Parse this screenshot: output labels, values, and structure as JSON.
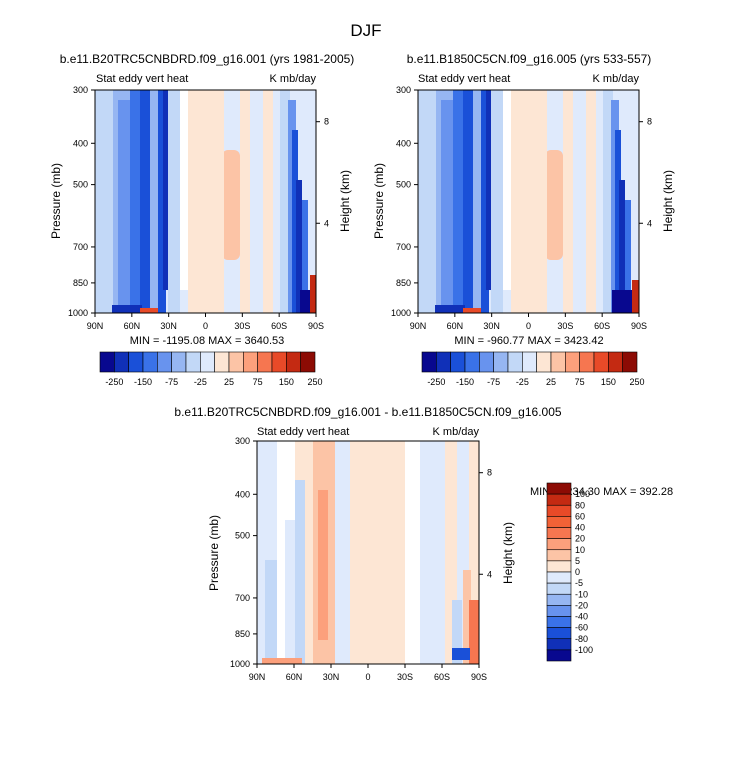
{
  "page": {
    "title": "DJF"
  },
  "panels": [
    {
      "id": "p1",
      "title": "b.e11.B20TRC5CNBDRD.f09_g16.001 (yrs 1981-2005)",
      "left_label": "Stat eddy vert heat",
      "right_label": "K mb/day",
      "ylabel": "Pressure (mb)",
      "ylabel_right": "Height (km)",
      "minmax": "MIN = -1195.08  MAX = 3640.53",
      "colorbar": "cb_main"
    },
    {
      "id": "p2",
      "title": "b.e11.B1850C5CN.f09_g16.005 (yrs 533-557)",
      "left_label": "Stat eddy vert heat",
      "right_label": "K mb/day",
      "ylabel": "Pressure (mb)",
      "ylabel_right": "Height (km)",
      "minmax": "MIN = -960.77  MAX = 3423.42",
      "colorbar": "cb_main"
    },
    {
      "id": "p3",
      "title": "b.e11.B20TRC5CNBDRD.f09_g16.001 - b.e11.B1850C5CN.f09_g16.005",
      "left_label": "Stat eddy vert heat",
      "right_label": "K mb/day",
      "ylabel": "Pressure (mb)",
      "ylabel_right": "Height (km)",
      "minmax": "MIN = -234.30  MAX = 392.28",
      "colorbar": "cb_diff"
    }
  ],
  "axes": {
    "x_ticks": [
      "90N",
      "60N",
      "30N",
      "0",
      "30S",
      "60S",
      "90S"
    ],
    "x_values": [
      90,
      60,
      30,
      0,
      -30,
      -60,
      -90
    ],
    "p_ticks": [
      300,
      400,
      500,
      700,
      850,
      1000
    ],
    "p_range": [
      300,
      1000
    ],
    "height_ticks": [
      8,
      4
    ],
    "y_scale": "log-pressure"
  },
  "colorbars": {
    "cb_main": {
      "labels": [
        "-250",
        "-150",
        "-75",
        "-25",
        "25",
        "75",
        "150",
        "250"
      ],
      "colors": [
        "#08088f",
        "#1030b8",
        "#1a50d8",
        "#3a72e8",
        "#6893ee",
        "#96b6f2",
        "#c2d8f7",
        "#dfeafc",
        "#fde6d4",
        "#fcc4a6",
        "#fca07c",
        "#f67650",
        "#e84a28",
        "#c42a12",
        "#8c0b04"
      ]
    },
    "cb_diff": {
      "labels": [
        "100",
        "80",
        "60",
        "40",
        "20",
        "10",
        "5",
        "0",
        "-5",
        "-10",
        "-20",
        "-40",
        "-60",
        "-80",
        "-100"
      ],
      "colors": [
        "#8c0b04",
        "#c42a12",
        "#e84a28",
        "#f26236",
        "#f67650",
        "#fca07c",
        "#fcc4a6",
        "#fde6d4",
        "#dfeafc",
        "#c2d8f7",
        "#96b6f2",
        "#6893ee",
        "#3a72e8",
        "#1a50d8",
        "#1030b8",
        "#08088f"
      ]
    }
  },
  "chart_data": [
    {
      "type": "heatmap",
      "title": "b.e11.B20TRC5CNBDRD.f09_g16.001 (yrs 1981-2005)",
      "subtitle": "Stat eddy vert heat",
      "units": "K mb/day",
      "xlabel": "",
      "ylabel": "Pressure (mb)",
      "ylabel_right": "Height (km)",
      "x_range": [
        90,
        -90
      ],
      "ylim": [
        1000,
        300
      ],
      "columns": [
        {
          "lat_range": [
            90,
            75
          ],
          "value": -25
        },
        {
          "lat_range": [
            75,
            45
          ],
          "value": -75
        },
        {
          "lat_range": [
            45,
            33
          ],
          "value": -150
        },
        {
          "lat_range": [
            33,
            28
          ],
          "value": -250
        },
        {
          "lat_range": [
            28,
            18
          ],
          "value": -25
        },
        {
          "lat_range": [
            18,
            10
          ],
          "value": 0
        },
        {
          "lat_range": [
            10,
            -5
          ],
          "value": 25
        },
        {
          "lat_range": [
            -5,
            -45
          ],
          "value": -25
        },
        {
          "lat_range": [
            -45,
            -58
          ],
          "value": 0
        },
        {
          "lat_range": [
            -58,
            -72
          ],
          "value": -25
        },
        {
          "lat_range": [
            -72,
            -84
          ],
          "value": -150
        },
        {
          "lat_range": [
            -84,
            -90
          ],
          "value": -25
        }
      ],
      "min": -1195.08,
      "max": 3640.53
    },
    {
      "type": "heatmap",
      "title": "b.e11.B1850C5CN.f09_g16.005 (yrs 533-557)",
      "subtitle": "Stat eddy vert heat",
      "units": "K mb/day",
      "xlabel": "",
      "ylabel": "Pressure (mb)",
      "ylabel_right": "Height (km)",
      "x_range": [
        90,
        -90
      ],
      "ylim": [
        1000,
        300
      ],
      "columns": [
        {
          "lat_range": [
            90,
            75
          ],
          "value": -25
        },
        {
          "lat_range": [
            75,
            45
          ],
          "value": -75
        },
        {
          "lat_range": [
            45,
            33
          ],
          "value": -150
        },
        {
          "lat_range": [
            33,
            28
          ],
          "value": -250
        },
        {
          "lat_range": [
            28,
            18
          ],
          "value": -25
        },
        {
          "lat_range": [
            18,
            10
          ],
          "value": 0
        },
        {
          "lat_range": [
            10,
            -5
          ],
          "value": 25
        },
        {
          "lat_range": [
            -5,
            -45
          ],
          "value": -25
        },
        {
          "lat_range": [
            -45,
            -58
          ],
          "value": 0
        },
        {
          "lat_range": [
            -58,
            -72
          ],
          "value": -25
        },
        {
          "lat_range": [
            -72,
            -84
          ],
          "value": -150
        },
        {
          "lat_range": [
            -84,
            -90
          ],
          "value": -25
        }
      ],
      "min": -960.77,
      "max": 3423.42
    },
    {
      "type": "heatmap",
      "title": "b.e11.B20TRC5CNBDRD.f09_g16.001 - b.e11.B1850C5CN.f09_g16.005",
      "subtitle": "Stat eddy vert heat",
      "units": "K mb/day",
      "xlabel": "",
      "ylabel": "Pressure (mb)",
      "ylabel_right": "Height (km)",
      "x_range": [
        90,
        -90
      ],
      "ylim": [
        1000,
        300
      ],
      "columns": [
        {
          "lat_range": [
            90,
            70
          ],
          "value": 0
        },
        {
          "lat_range": [
            70,
            45
          ],
          "value": -5
        },
        {
          "lat_range": [
            45,
            35
          ],
          "value": 5
        },
        {
          "lat_range": [
            35,
            25
          ],
          "value": 10
        },
        {
          "lat_range": [
            25,
            15
          ],
          "value": 0
        },
        {
          "lat_range": [
            15,
            -30
          ],
          "value": 5
        },
        {
          "lat_range": [
            -30,
            -50
          ],
          "value": -5
        },
        {
          "lat_range": [
            -50,
            -70
          ],
          "value": 0
        },
        {
          "lat_range": [
            -70,
            -80
          ],
          "value": -5
        },
        {
          "lat_range": [
            -80,
            -90
          ],
          "value": 10
        }
      ],
      "min": -234.3,
      "max": 392.28
    }
  ]
}
